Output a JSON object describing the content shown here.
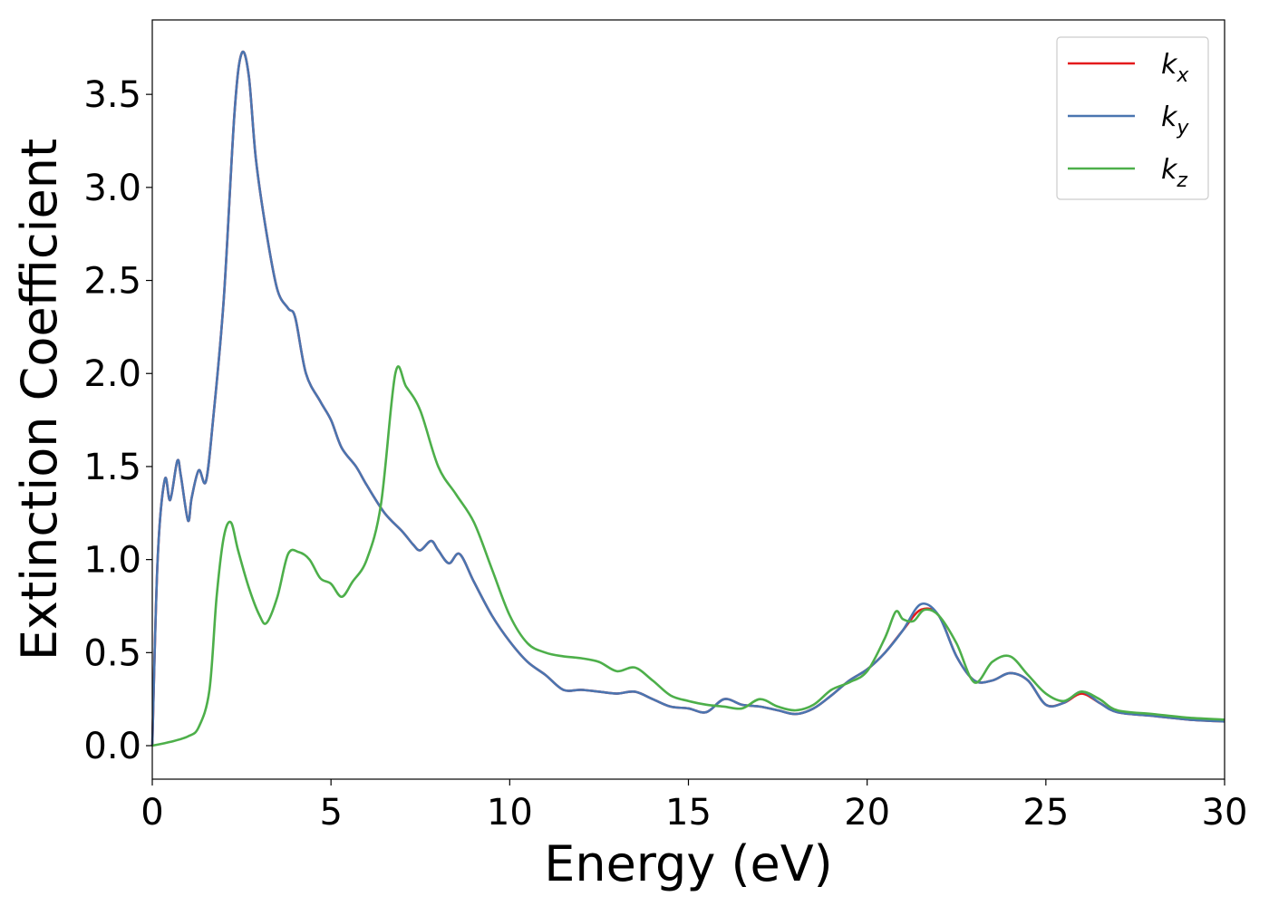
{
  "chart_data": {
    "type": "line",
    "title": "",
    "xlabel": "Energy (eV)",
    "ylabel": "Extinction Coefficient",
    "xlim": [
      0,
      30
    ],
    "ylim": [
      -0.18,
      3.9
    ],
    "xticks": [
      0,
      5,
      10,
      15,
      20,
      25,
      30
    ],
    "xtick_labels": [
      "0",
      "5",
      "10",
      "15",
      "20",
      "25",
      "30"
    ],
    "yticks": [
      0.0,
      0.5,
      1.0,
      1.5,
      2.0,
      2.5,
      3.0,
      3.5
    ],
    "ytick_labels": [
      "0.0",
      "0.5",
      "1.0",
      "1.5",
      "2.0",
      "2.5",
      "3.0",
      "3.5"
    ],
    "grid": false,
    "legend_position": "top-right",
    "series": [
      {
        "name": "k",
        "subscript": "x",
        "color": "#e41a1c",
        "x": [
          0,
          0.15,
          0.35,
          0.5,
          0.7,
          0.8,
          1.0,
          1.1,
          1.3,
          1.5,
          1.7,
          2.0,
          2.3,
          2.5,
          2.7,
          2.9,
          3.2,
          3.5,
          3.8,
          4.0,
          4.3,
          4.7,
          5.0,
          5.3,
          5.7,
          6.0,
          6.5,
          7.0,
          7.3,
          7.5,
          7.8,
          8.0,
          8.3,
          8.6,
          9.0,
          9.5,
          10.0,
          10.5,
          11.0,
          11.5,
          12.0,
          12.5,
          13.0,
          13.5,
          14.0,
          14.5,
          15.0,
          15.5,
          16.0,
          16.5,
          17.0,
          17.5,
          18.0,
          18.5,
          19.0,
          19.5,
          20.0,
          20.5,
          21.0,
          21.5,
          22.0,
          22.5,
          23.0,
          23.5,
          24.0,
          24.5,
          25.0,
          25.5,
          26.0,
          26.5,
          27.0,
          28.0,
          29.0,
          30.0
        ],
        "y": [
          0.0,
          1.0,
          1.43,
          1.32,
          1.53,
          1.45,
          1.21,
          1.33,
          1.48,
          1.42,
          1.75,
          2.4,
          3.4,
          3.72,
          3.6,
          3.15,
          2.75,
          2.45,
          2.35,
          2.3,
          2.0,
          1.85,
          1.75,
          1.6,
          1.5,
          1.4,
          1.25,
          1.15,
          1.08,
          1.05,
          1.1,
          1.05,
          0.98,
          1.03,
          0.88,
          0.7,
          0.56,
          0.45,
          0.38,
          0.3,
          0.3,
          0.29,
          0.28,
          0.29,
          0.25,
          0.21,
          0.2,
          0.18,
          0.25,
          0.22,
          0.21,
          0.19,
          0.17,
          0.2,
          0.27,
          0.35,
          0.41,
          0.5,
          0.62,
          0.73,
          0.7,
          0.48,
          0.35,
          0.35,
          0.39,
          0.35,
          0.22,
          0.23,
          0.28,
          0.23,
          0.18,
          0.16,
          0.14,
          0.13
        ]
      },
      {
        "name": "k",
        "subscript": "y",
        "color": "#4a75b0",
        "x": [
          0,
          0.15,
          0.35,
          0.5,
          0.7,
          0.8,
          1.0,
          1.1,
          1.3,
          1.5,
          1.7,
          2.0,
          2.3,
          2.5,
          2.7,
          2.9,
          3.2,
          3.5,
          3.8,
          4.0,
          4.3,
          4.7,
          5.0,
          5.3,
          5.7,
          6.0,
          6.5,
          7.0,
          7.3,
          7.5,
          7.8,
          8.0,
          8.3,
          8.6,
          9.0,
          9.5,
          10.0,
          10.5,
          11.0,
          11.5,
          12.0,
          12.5,
          13.0,
          13.5,
          14.0,
          14.5,
          15.0,
          15.5,
          16.0,
          16.5,
          17.0,
          17.5,
          18.0,
          18.5,
          19.0,
          19.5,
          20.0,
          20.5,
          21.0,
          21.5,
          22.0,
          22.5,
          23.0,
          23.5,
          24.0,
          24.5,
          25.0,
          25.5,
          26.0,
          26.5,
          27.0,
          28.0,
          29.0,
          30.0
        ],
        "y": [
          0.0,
          1.0,
          1.43,
          1.32,
          1.53,
          1.45,
          1.21,
          1.33,
          1.48,
          1.42,
          1.75,
          2.4,
          3.4,
          3.72,
          3.6,
          3.15,
          2.75,
          2.45,
          2.35,
          2.3,
          2.0,
          1.85,
          1.75,
          1.6,
          1.5,
          1.4,
          1.25,
          1.15,
          1.08,
          1.05,
          1.1,
          1.05,
          0.98,
          1.03,
          0.88,
          0.7,
          0.56,
          0.45,
          0.38,
          0.3,
          0.3,
          0.29,
          0.28,
          0.29,
          0.25,
          0.21,
          0.2,
          0.18,
          0.25,
          0.22,
          0.21,
          0.19,
          0.17,
          0.2,
          0.27,
          0.35,
          0.41,
          0.5,
          0.62,
          0.76,
          0.7,
          0.48,
          0.35,
          0.35,
          0.39,
          0.35,
          0.22,
          0.23,
          0.29,
          0.23,
          0.18,
          0.16,
          0.14,
          0.13
        ]
      },
      {
        "name": "k",
        "subscript": "z",
        "color": "#4daf4a",
        "x": [
          0,
          0.5,
          1.0,
          1.3,
          1.6,
          1.8,
          2.0,
          2.2,
          2.4,
          2.7,
          3.0,
          3.2,
          3.5,
          3.8,
          4.1,
          4.4,
          4.7,
          5.0,
          5.3,
          5.6,
          6.0,
          6.4,
          6.8,
          7.1,
          7.5,
          8.0,
          8.5,
          9.0,
          9.5,
          10.0,
          10.5,
          11.0,
          11.5,
          12.0,
          12.5,
          13.0,
          13.5,
          14.0,
          14.5,
          15.0,
          15.5,
          16.0,
          16.5,
          17.0,
          17.5,
          18.0,
          18.5,
          19.0,
          19.5,
          20.0,
          20.5,
          20.8,
          21.0,
          21.3,
          21.6,
          22.0,
          22.5,
          23.0,
          23.5,
          24.0,
          24.5,
          25.0,
          25.5,
          26.0,
          26.5,
          27.0,
          28.0,
          29.0,
          30.0
        ],
        "y": [
          0.0,
          0.02,
          0.05,
          0.1,
          0.3,
          0.8,
          1.12,
          1.2,
          1.05,
          0.85,
          0.7,
          0.66,
          0.8,
          1.03,
          1.04,
          1.0,
          0.9,
          0.87,
          0.8,
          0.88,
          1.0,
          1.3,
          2.0,
          1.93,
          1.8,
          1.5,
          1.35,
          1.2,
          0.95,
          0.7,
          0.55,
          0.5,
          0.48,
          0.47,
          0.45,
          0.4,
          0.42,
          0.35,
          0.27,
          0.24,
          0.22,
          0.21,
          0.2,
          0.25,
          0.21,
          0.19,
          0.22,
          0.3,
          0.34,
          0.4,
          0.58,
          0.72,
          0.68,
          0.67,
          0.73,
          0.7,
          0.55,
          0.34,
          0.45,
          0.48,
          0.38,
          0.28,
          0.24,
          0.29,
          0.25,
          0.19,
          0.17,
          0.15,
          0.14
        ]
      }
    ]
  }
}
